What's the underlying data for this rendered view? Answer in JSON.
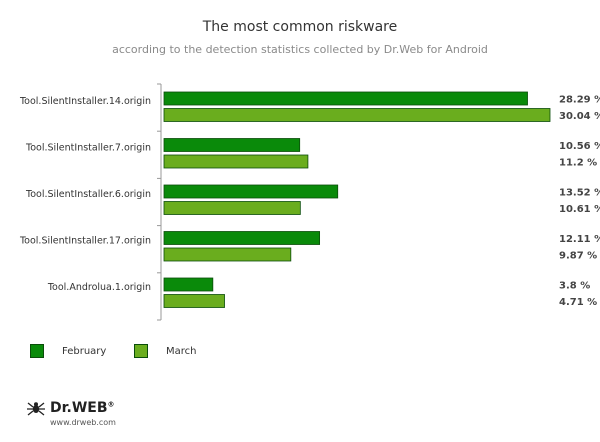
{
  "title": "The most common riskware",
  "subtitle": "according to the detection statistics collected by Dr.Web for Android",
  "colors": {
    "february": "#0a8a0a",
    "march": "#6aad1e",
    "axis": "#999999"
  },
  "legend": [
    {
      "label": "February",
      "color": "#0a8a0a"
    },
    {
      "label": "March",
      "color": "#6aad1e"
    }
  ],
  "chart_data": {
    "type": "bar",
    "orientation": "horizontal",
    "categories": [
      "Tool.SilentInstaller.14.origin",
      "Tool.SilentInstaller.7.origin",
      "Tool.SilentInstaller.6.origin",
      "Tool.SilentInstaller.17.origin",
      "Tool.Androlua.1.origin"
    ],
    "series": [
      {
        "name": "February",
        "values": [
          28.29,
          10.56,
          13.52,
          12.11,
          3.8
        ],
        "labels": [
          "28.29 %",
          "10.56 %",
          "13.52 %",
          "12.11 %",
          "3.8 %"
        ]
      },
      {
        "name": "March",
        "values": [
          30.04,
          11.2,
          10.61,
          9.87,
          4.71
        ],
        "labels": [
          "30.04 %",
          "11.2 %",
          "10.61 %",
          "9.87 %",
          "4.71 %"
        ]
      }
    ],
    "xlim": [
      0,
      30.04
    ],
    "legend_position": "bottom-left",
    "grid": false
  },
  "logo": {
    "brand": "Dr.WEB",
    "registered": "®",
    "url": "www.drweb.com"
  }
}
